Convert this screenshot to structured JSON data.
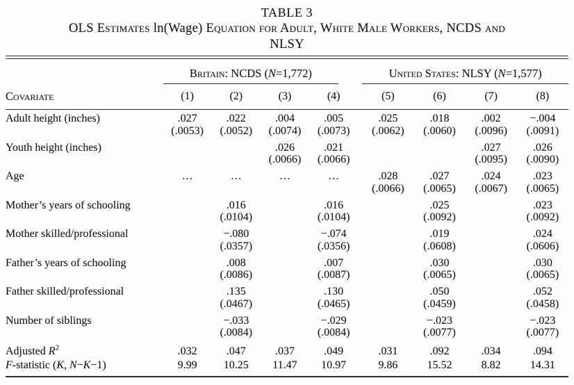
{
  "title": {
    "table_number": "TABLE 3",
    "line2_sc1": "OLS Estimates",
    "line2_plain": "ln(Wage)",
    "line2_sc2": "Equation for Adult, White Male Workers, NCDS and",
    "line3": "NLSY"
  },
  "header": {
    "covariate_label": "Covariate",
    "groups": [
      {
        "name_prefix": "Britain: NCDS (",
        "n_symbol": "N",
        "n_rest": "=1,772)",
        "columns": [
          "(1)",
          "(2)",
          "(3)",
          "(4)"
        ]
      },
      {
        "name_prefix": "United States: NLSY (",
        "n_symbol": "N",
        "n_rest": "=1,577)",
        "columns": [
          "(5)",
          "(6)",
          "(7)",
          "(8)"
        ]
      }
    ]
  },
  "rows": [
    {
      "label": "Adult height (inches)",
      "coef": [
        ".027",
        ".022",
        ".004",
        ".005",
        ".025",
        ".018",
        ".002",
        "−.004"
      ],
      "se": [
        "(.0053)",
        "(.0052)",
        "(.0074)",
        "(.0073)",
        "(.0062)",
        "(.0060)",
        "(.0096)",
        "(.0091)"
      ]
    },
    {
      "label": "Youth height (inches)",
      "coef": [
        "",
        "",
        ".026",
        ".021",
        "",
        "",
        ".027",
        ".026"
      ],
      "se": [
        "",
        "",
        "(.0066)",
        "(.0066)",
        "",
        "",
        "(.0095)",
        "(.0090)"
      ]
    },
    {
      "label": "Age",
      "coef": [
        "…",
        "…",
        "…",
        "…",
        ".028",
        ".027",
        ".024",
        ".023"
      ],
      "se": [
        "",
        "",
        "",
        "",
        "(.0066)",
        "(.0065)",
        "(.0067)",
        "(.0065)"
      ]
    },
    {
      "label": "Mother’s years of schooling",
      "coef": [
        "",
        ".016",
        "",
        ".016",
        "",
        ".025",
        "",
        ".023"
      ],
      "se": [
        "",
        "(.0104)",
        "",
        "(.0104)",
        "",
        "(.0092)",
        "",
        "(.0092)"
      ]
    },
    {
      "label": "Mother skilled/professional",
      "coef": [
        "",
        "−.080",
        "",
        "−.074",
        "",
        ".019",
        "",
        ".024"
      ],
      "se": [
        "",
        "(.0357)",
        "",
        "(.0356)",
        "",
        "(.0608)",
        "",
        "(.0606)"
      ]
    },
    {
      "label": "Father’s years of schooling",
      "coef": [
        "",
        ".008",
        "",
        ".007",
        "",
        ".030",
        "",
        ".030"
      ],
      "se": [
        "",
        "(.0086)",
        "",
        "(.0087)",
        "",
        "(.0065)",
        "",
        "(.0065)"
      ]
    },
    {
      "label": "Father skilled/professional",
      "coef": [
        "",
        ".135",
        "",
        ".130",
        "",
        ".050",
        "",
        ".052"
      ],
      "se": [
        "",
        "(.0467)",
        "",
        "(.0465)",
        "",
        "(.0459)",
        "",
        "(.0458)"
      ]
    },
    {
      "label": "Number of siblings",
      "coef": [
        "",
        "−.033",
        "",
        "−.029",
        "",
        "−.023",
        "",
        "−.023"
      ],
      "se": [
        "",
        "(.0084)",
        "",
        "(.0084)",
        "",
        "(.0077)",
        "",
        "(.0077)"
      ]
    },
    {
      "single": true,
      "label_parts": [
        {
          "t": "Adjusted "
        },
        {
          "t": "R",
          "i": true
        },
        {
          "t": "2",
          "sup": true
        }
      ],
      "values": [
        ".032",
        ".047",
        ".037",
        ".049",
        ".031",
        ".092",
        ".034",
        ".094"
      ]
    },
    {
      "single": true,
      "label_parts": [
        {
          "t": "F",
          "i": true
        },
        {
          "t": "-statistic ("
        },
        {
          "t": "K",
          "i": true
        },
        {
          "t": ", "
        },
        {
          "t": "N",
          "i": true
        },
        {
          "t": "−"
        },
        {
          "t": "K",
          "i": true
        },
        {
          "t": "−1)"
        }
      ],
      "values": [
        "9.99",
        "10.25",
        "11.47",
        "10.97",
        "9.86",
        "15.52",
        "8.82",
        "14.31"
      ]
    }
  ],
  "colors": {
    "text": "#1a1a1a",
    "rule": "#2b2b2b",
    "background": "#fdfdfd"
  }
}
